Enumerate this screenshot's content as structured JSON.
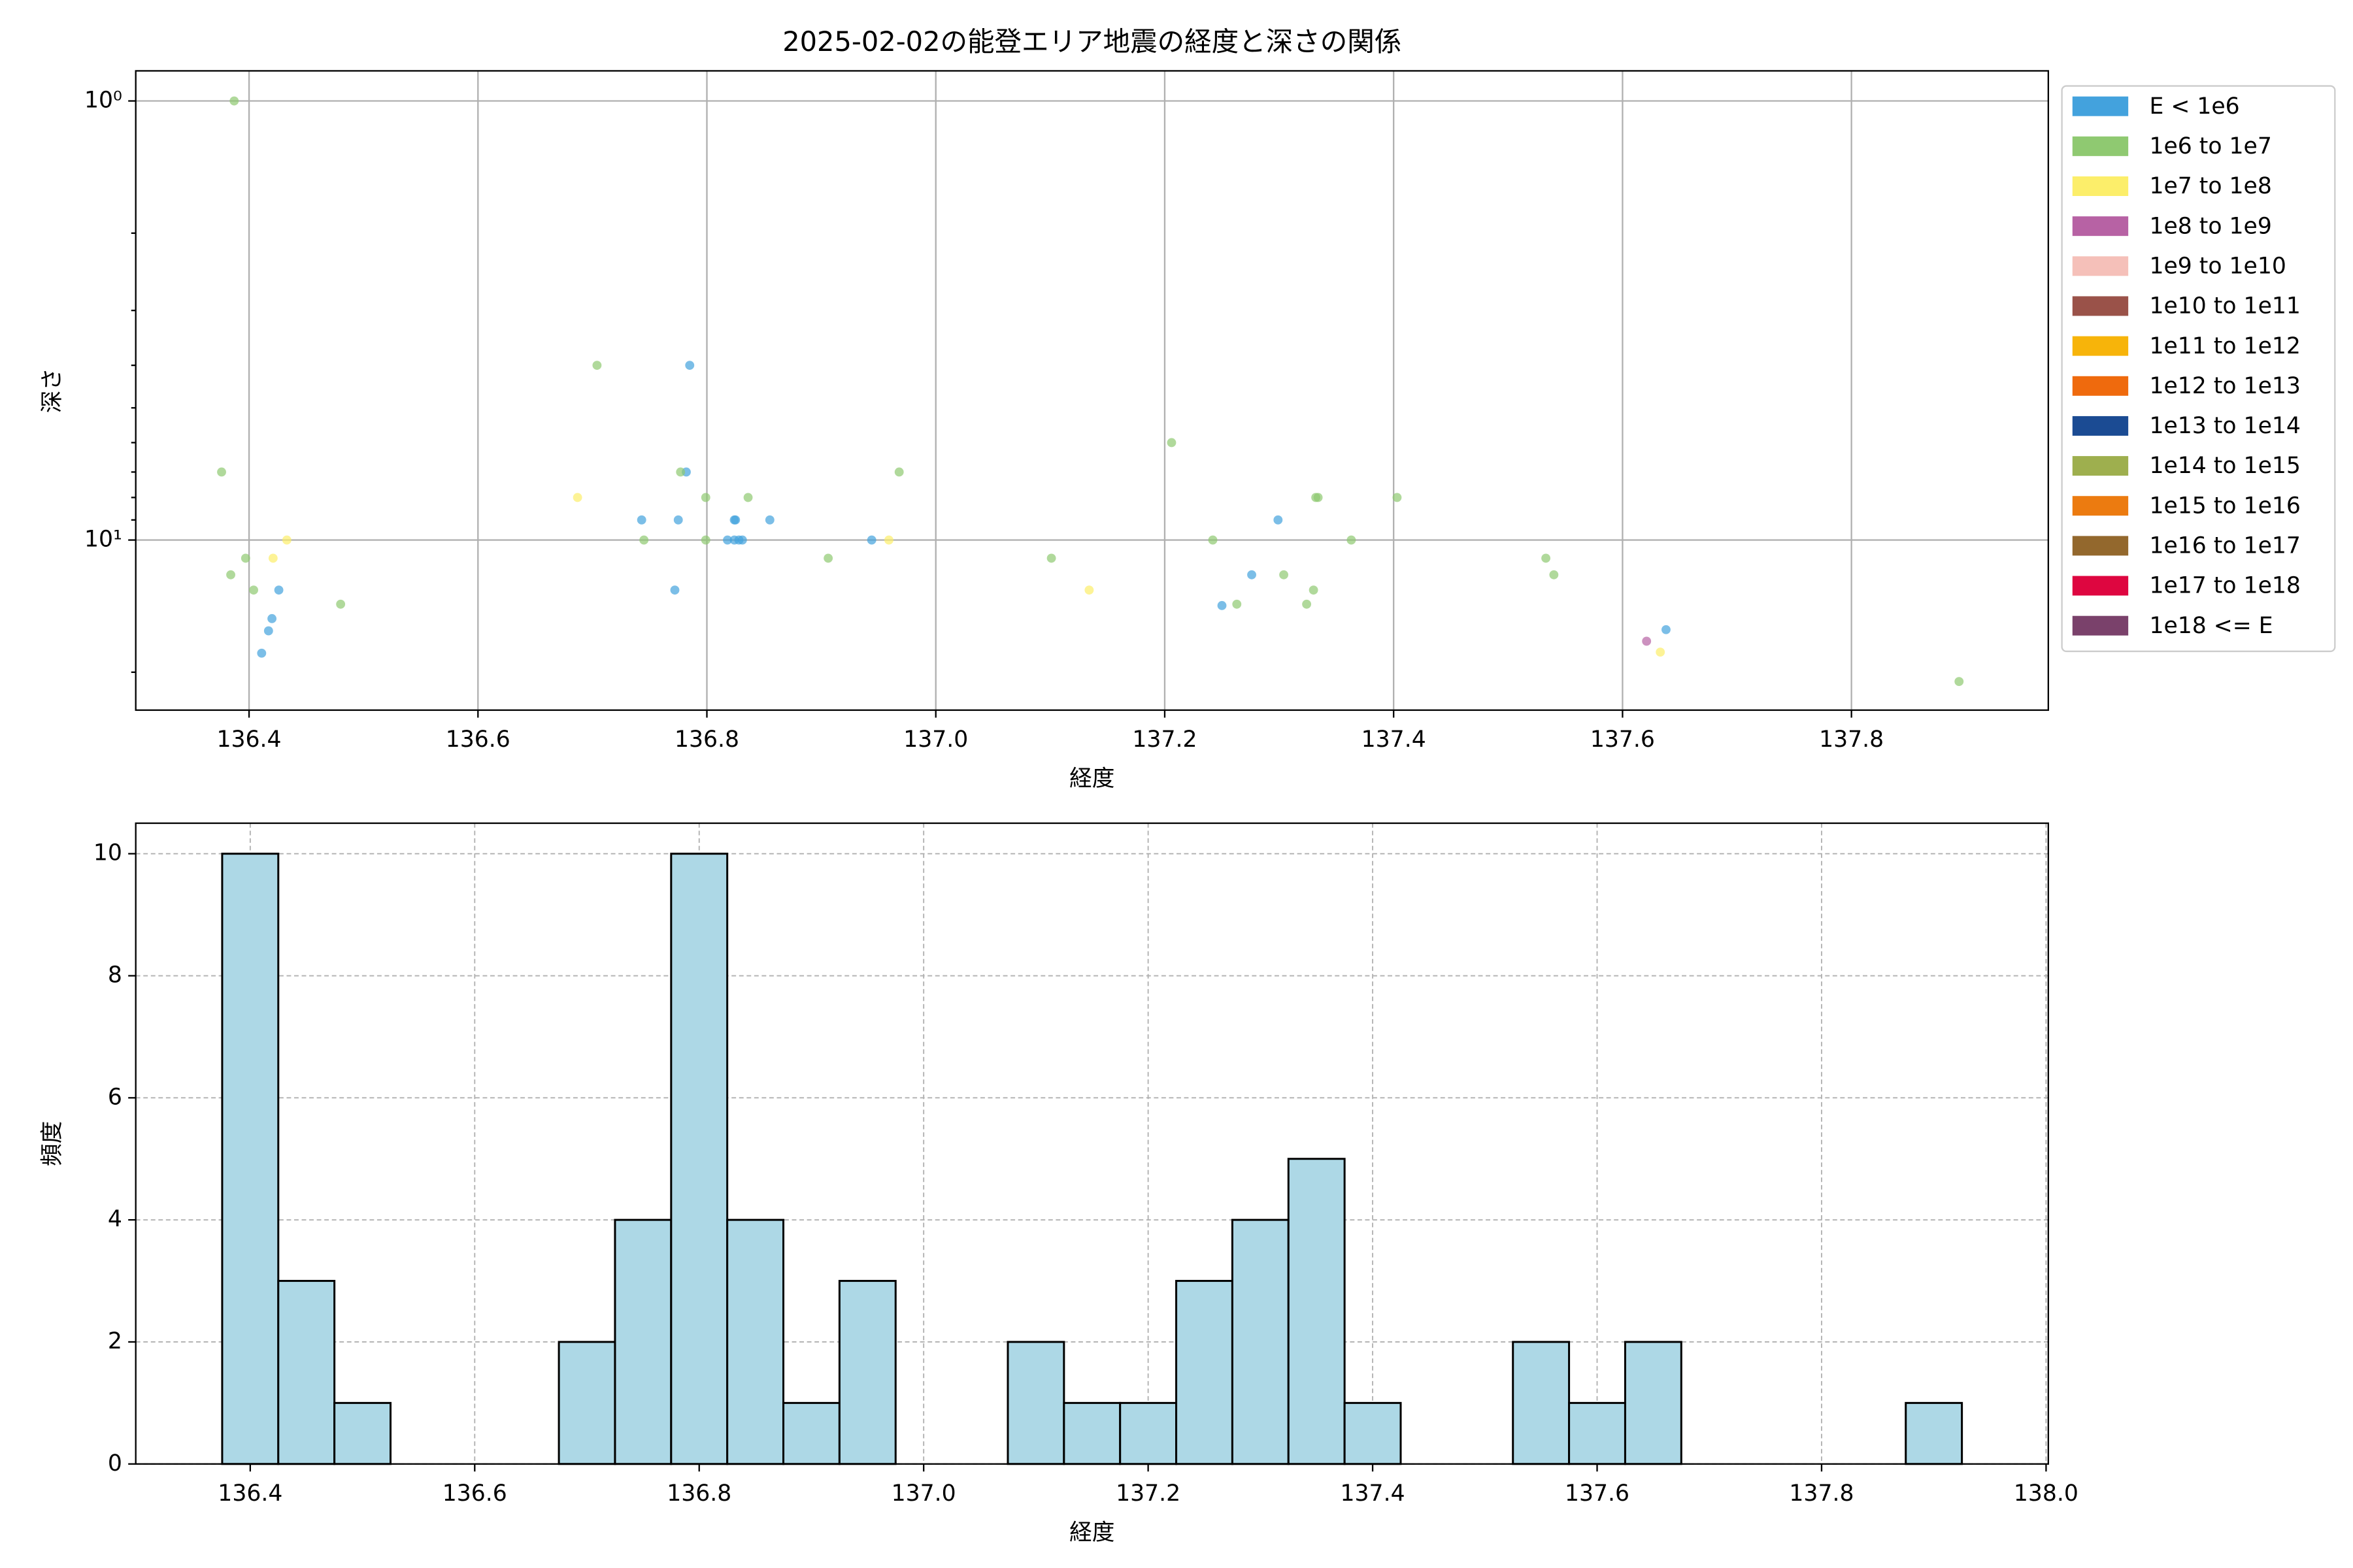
{
  "chart_data": [
    {
      "type": "scatter",
      "title": "2025-02-02の能登エリア地震の経度と深さの関係",
      "xlabel": "経度",
      "ylabel": "深さ",
      "xlim": [
        136.301,
        137.972
      ],
      "xticks": [
        136.4,
        136.6,
        136.8,
        {
          "value": 137,
          "label": "137.0"
        },
        137.2,
        137.4,
        137.6,
        137.8
      ],
      "ylim": [
        0.854,
        24.4
      ],
      "yscale": "log",
      "yinverted": true,
      "yticks": [
        {
          "value": 1,
          "label": "10⁰"
        },
        {
          "value": 10,
          "label": "10¹"
        }
      ],
      "yminorticks": [
        2,
        3,
        4,
        5,
        6,
        7,
        8,
        9,
        20
      ],
      "grid": true,
      "legend": "outside-right",
      "alpha": 0.7,
      "series": [
        {
          "name": "E < 1e6",
          "color": "#43a2dd",
          "x": [
            136.785,
            136.782,
            136.743,
            136.775,
            136.824,
            136.825,
            136.818,
            136.824,
            136.828,
            136.831,
            136.855,
            136.772,
            136.944,
            136.426,
            136.42,
            136.417,
            136.411,
            137.299,
            137.276,
            137.25,
            137.638
          ],
          "values": [
            4.0,
            7.0,
            9.0,
            9.0,
            9.0,
            9.0,
            10,
            10,
            10,
            10,
            9.0,
            13,
            10,
            13,
            15.1,
            16.1,
            18.1,
            9.0,
            12,
            14.1,
            16
          ]
        },
        {
          "name": "1e6 to 1e7",
          "color": "#8fc971",
          "x": [
            136.387,
            136.376,
            136.397,
            136.384,
            136.404,
            136.48,
            136.704,
            136.745,
            136.777,
            136.799,
            136.836,
            136.799,
            136.906,
            136.968,
            137.101,
            137.206,
            137.242,
            137.263,
            137.304,
            137.324,
            137.33,
            137.332,
            137.334,
            137.363,
            137.403,
            137.533,
            137.54,
            137.894
          ],
          "values": [
            1.0,
            7,
            11,
            12,
            13,
            14,
            4,
            10,
            7,
            8,
            8,
            10,
            11,
            7,
            11,
            6.0,
            10,
            14,
            12,
            14,
            13,
            8,
            8,
            10,
            8,
            11,
            12,
            21
          ]
        },
        {
          "name": "1e7 to 1e8",
          "color": "#fcee6a",
          "x": [
            136.687,
            136.421,
            136.433,
            136.959,
            137.134,
            137.633
          ],
          "values": [
            8,
            11,
            10,
            10,
            13,
            18
          ]
        },
        {
          "name": "1e8 to 1e9",
          "color": "#b762a4",
          "x": [
            137.621
          ],
          "values": [
            17.0
          ]
        },
        {
          "name": "1e9 to 1e10",
          "color": "#f5c0b9",
          "x": [],
          "values": []
        },
        {
          "name": "1e10 to 1e11",
          "color": "#9a5249",
          "x": [],
          "values": []
        },
        {
          "name": "1e11 to 1e12",
          "color": "#f7b40a",
          "x": [],
          "values": []
        },
        {
          "name": "1e12 to 1e13",
          "color": "#ef6a0d",
          "x": [],
          "values": []
        },
        {
          "name": "1e13 to 1e14",
          "color": "#1b4b93",
          "x": [],
          "values": []
        },
        {
          "name": "1e14 to 1e15",
          "color": "#9eaf4e",
          "x": [],
          "values": []
        },
        {
          "name": "1e15 to 1e16",
          "color": "#ec7b10",
          "x": [],
          "values": []
        },
        {
          "name": "1e16 to 1e17",
          "color": "#93682d",
          "x": [],
          "values": []
        },
        {
          "name": "1e17 to 1e18",
          "color": "#de0640",
          "x": [],
          "values": []
        },
        {
          "name": "1e18 <= E",
          "color": "#7a416b",
          "x": [],
          "values": []
        }
      ]
    },
    {
      "type": "histogram",
      "xlabel": "経度",
      "ylabel": "頻度",
      "xlim": [
        136.298,
        138.002
      ],
      "xticks": [
        136.4,
        136.6,
        136.8,
        {
          "value": 137,
          "label": "137.0"
        },
        137.2,
        137.4,
        137.6,
        137.8,
        {
          "value": 138,
          "label": "138.0"
        }
      ],
      "ylim": [
        0,
        10.5
      ],
      "yticks": [
        0,
        2,
        4,
        6,
        8,
        10
      ],
      "grid": "dashed",
      "color": "#add8e6",
      "edgecolor": "#000000",
      "bins": [
        136.375,
        136.425,
        136.475,
        136.525,
        136.575,
        136.625,
        136.675,
        136.725,
        136.775,
        136.825,
        136.875,
        136.925,
        136.975,
        137.025,
        137.075,
        137.125,
        137.175,
        137.225,
        137.275,
        137.325,
        137.375,
        137.425,
        137.475,
        137.525,
        137.575,
        137.625,
        137.675,
        137.725,
        137.775,
        137.825,
        137.875,
        137.925
      ],
      "values": [
        10,
        3,
        1,
        0,
        0,
        0,
        2,
        4,
        10,
        4,
        1,
        3,
        0,
        0,
        2,
        1,
        1,
        3,
        4,
        5,
        1,
        0,
        0,
        2,
        1,
        2,
        0,
        0,
        0,
        0,
        1
      ]
    }
  ]
}
